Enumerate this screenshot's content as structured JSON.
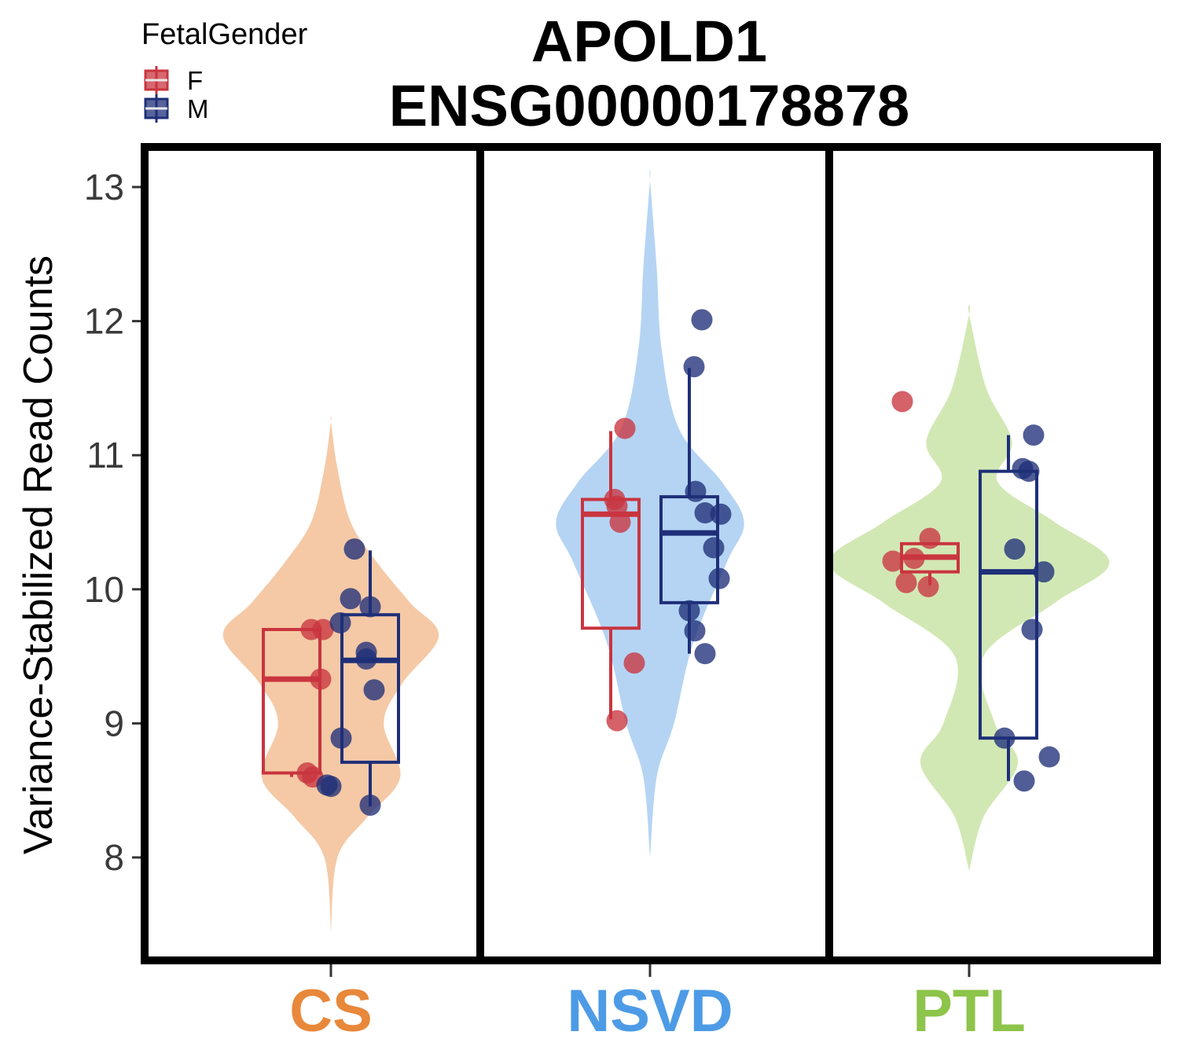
{
  "chart_data": {
    "type": "violin",
    "title": [
      "APOLD1",
      "ENSG00000178878"
    ],
    "ylabel": "Variance-Stabilized Read Counts",
    "ylim": [
      7.3,
      13.3
    ],
    "yticks": [
      8,
      9,
      10,
      11,
      12,
      13
    ],
    "legend": {
      "title": "FetalGender",
      "position": "top-left",
      "items": [
        {
          "label": "F",
          "color": "#c9353f"
        },
        {
          "label": "M",
          "color": "#1f2f78"
        }
      ]
    },
    "groups": [
      {
        "label": "CS",
        "color": "#e8883a",
        "violin_color": "#f5c9a6",
        "violin_range": [
          7.45,
          11.25
        ],
        "violin_profile": [
          [
            7.45,
            0.0
          ],
          [
            8.0,
            0.06
          ],
          [
            8.3,
            0.33
          ],
          [
            8.6,
            0.63
          ],
          [
            9.0,
            0.48
          ],
          [
            9.3,
            0.65
          ],
          [
            9.65,
            0.98
          ],
          [
            9.9,
            0.72
          ],
          [
            10.2,
            0.42
          ],
          [
            10.5,
            0.18
          ],
          [
            10.9,
            0.06
          ],
          [
            11.25,
            0.0
          ]
        ],
        "boxes": [
          {
            "gender": "F",
            "q1": 8.63,
            "median": 9.33,
            "q3": 9.7,
            "whisker_low": 8.6,
            "whisker_high": 9.7
          },
          {
            "gender": "M",
            "q1": 8.71,
            "median": 9.47,
            "q3": 9.81,
            "whisker_low": 8.38,
            "whisker_high": 10.29
          }
        ],
        "points": [
          {
            "gender": "F",
            "values": [
              9.7,
              9.7,
              9.33,
              8.63,
              8.6
            ]
          },
          {
            "gender": "M",
            "values": [
              10.3,
              9.93,
              9.87,
              9.75,
              9.53,
              9.48,
              9.25,
              8.89,
              8.54,
              8.53,
              8.39
            ]
          }
        ]
      },
      {
        "label": "NSVD",
        "color": "#4d9be6",
        "violin_color": "#b5d4f4",
        "violin_range": [
          8.0,
          13.05
        ],
        "violin_profile": [
          [
            8.0,
            0.0
          ],
          [
            8.6,
            0.07
          ],
          [
            9.0,
            0.25
          ],
          [
            9.6,
            0.45
          ],
          [
            10.2,
            0.8
          ],
          [
            10.5,
            0.98
          ],
          [
            10.8,
            0.75
          ],
          [
            11.2,
            0.3
          ],
          [
            11.8,
            0.12
          ],
          [
            12.4,
            0.07
          ],
          [
            13.05,
            0.0
          ]
        ],
        "boxes": [
          {
            "gender": "F",
            "q1": 9.71,
            "median": 10.56,
            "q3": 10.67,
            "whisker_low": 9.03,
            "whisker_high": 11.18
          },
          {
            "gender": "M",
            "q1": 9.9,
            "median": 10.42,
            "q3": 10.69,
            "whisker_low": 9.52,
            "whisker_high": 11.65
          }
        ],
        "points": [
          {
            "gender": "F",
            "values": [
              11.2,
              10.67,
              10.62,
              10.5,
              9.45,
              9.02
            ]
          },
          {
            "gender": "M",
            "values": [
              12.01,
              11.66,
              10.73,
              10.57,
              10.56,
              10.31,
              10.08,
              9.84,
              9.69,
              9.52
            ]
          }
        ]
      },
      {
        "label": "PTL",
        "color": "#8dc44a",
        "violin_color": "#d2e8b4",
        "violin_range": [
          7.9,
          12.05
        ],
        "violin_profile": [
          [
            7.9,
            0.0
          ],
          [
            8.3,
            0.1
          ],
          [
            8.7,
            0.34
          ],
          [
            9.0,
            0.18
          ],
          [
            9.5,
            0.1
          ],
          [
            9.9,
            0.6
          ],
          [
            10.2,
            0.98
          ],
          [
            10.5,
            0.6
          ],
          [
            10.8,
            0.2
          ],
          [
            11.1,
            0.3
          ],
          [
            11.5,
            0.12
          ],
          [
            12.05,
            0.0
          ]
        ],
        "boxes": [
          {
            "gender": "F",
            "q1": 10.13,
            "median": 10.24,
            "q3": 10.34,
            "whisker_low": 10.03,
            "whisker_high": 10.34
          },
          {
            "gender": "M",
            "q1": 8.89,
            "median": 10.13,
            "q3": 10.88,
            "whisker_low": 8.57,
            "whisker_high": 11.15
          }
        ],
        "points": [
          {
            "gender": "F",
            "values": [
              11.4,
              10.38,
              10.23,
              10.21,
              10.05,
              10.02
            ]
          },
          {
            "gender": "M",
            "values": [
              11.15,
              10.9,
              10.88,
              10.3,
              10.13,
              9.7,
              8.89,
              8.75,
              8.57
            ]
          }
        ]
      }
    ]
  }
}
